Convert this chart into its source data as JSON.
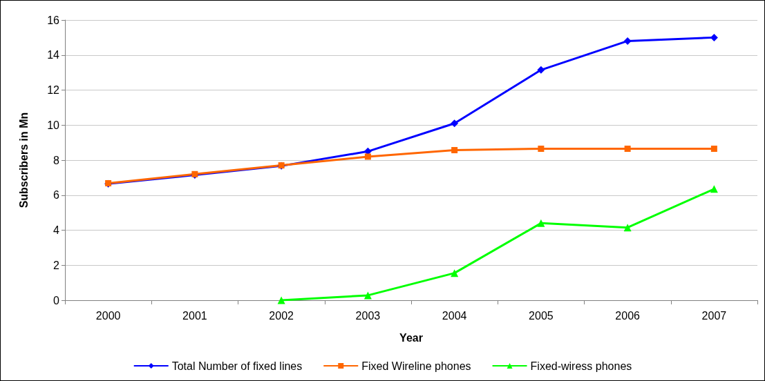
{
  "chart_data": {
    "type": "line",
    "xlabel": "Year",
    "ylabel": "Subscribers in Mn",
    "categories": [
      "2000",
      "2001",
      "2002",
      "2003",
      "2004",
      "2005",
      "2006",
      "2007"
    ],
    "series": [
      {
        "name": "Total Number of fixed lines",
        "color": "#0000ff",
        "marker": "diamond",
        "values": [
          6.65,
          7.15,
          7.67,
          8.5,
          10.1,
          13.15,
          14.8,
          15.0
        ]
      },
      {
        "name": "Fixed Wireline phones",
        "color": "#ff6600",
        "marker": "square",
        "values": [
          6.68,
          7.2,
          7.7,
          8.2,
          8.57,
          8.65,
          8.65,
          8.65
        ]
      },
      {
        "name": "Fixed-wiress phones",
        "color": "#00ff00",
        "marker": "triangle",
        "values": [
          null,
          null,
          0,
          0.28,
          1.55,
          4.4,
          4.15,
          6.35
        ]
      }
    ],
    "ylim": [
      0,
      16
    ],
    "yticks": [
      0,
      2,
      4,
      6,
      8,
      10,
      12,
      14,
      16
    ],
    "grid": "y",
    "legend": "bottom",
    "line_style": "solid"
  }
}
